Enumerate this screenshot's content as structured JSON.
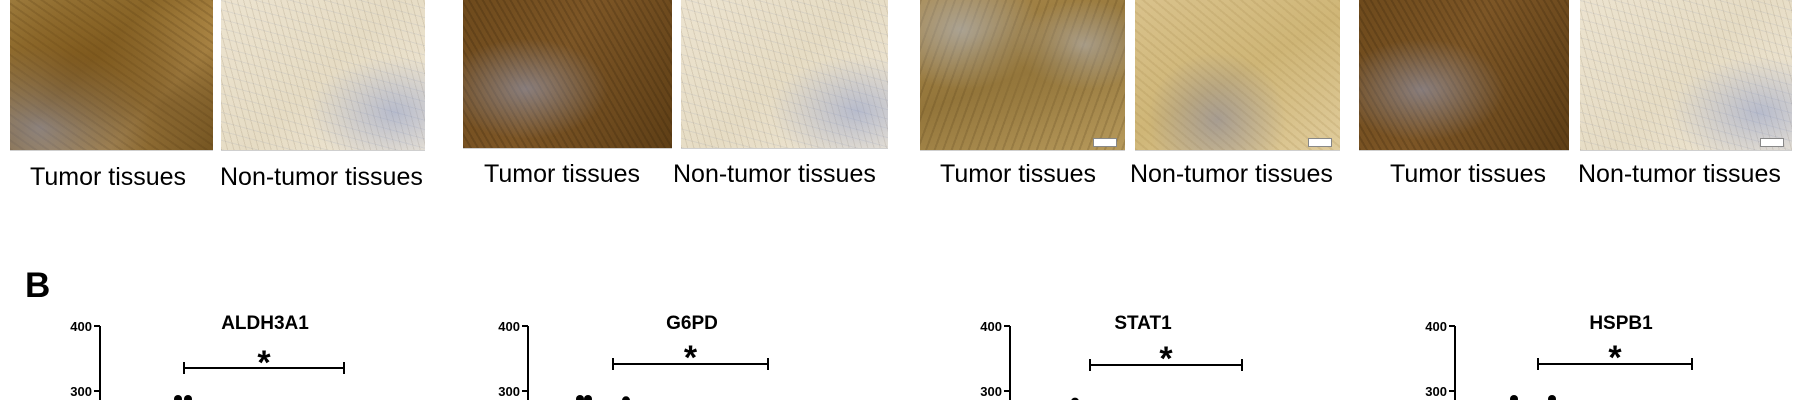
{
  "panel_a": {
    "groups": [
      {
        "tumor_label": "Tumor tissues",
        "normal_label": "Non-tumor tissues"
      },
      {
        "tumor_label": "Tumor tissues",
        "normal_label": "Non-tumor tissues"
      },
      {
        "tumor_label": "Tumor tissues",
        "normal_label": "Non-tumor tissues"
      },
      {
        "tumor_label": "Tumor tissues",
        "normal_label": "Non-tumor tissues"
      }
    ]
  },
  "panel_b": {
    "letter": "B",
    "significance_marker": "*"
  },
  "chart_data": [
    {
      "type": "scatter",
      "title": "ALDH3A1",
      "yticks": [
        300,
        400
      ],
      "ylim_visible": [
        290,
        400
      ],
      "significance": "*",
      "visible_points_y": [
        300,
        300
      ]
    },
    {
      "type": "scatter",
      "title": "G6PD",
      "yticks": [
        300,
        400
      ],
      "ylim_visible": [
        290,
        400
      ],
      "significance": "*",
      "visible_points_y": [
        300,
        300,
        298
      ]
    },
    {
      "type": "scatter",
      "title": "STAT1",
      "yticks": [
        300,
        400
      ],
      "ylim_visible": [
        290,
        400
      ],
      "significance": "*",
      "visible_points_y": [
        296
      ]
    },
    {
      "type": "scatter",
      "title": "HSPB1",
      "yticks": [
        300,
        400
      ],
      "ylim_visible": [
        290,
        400
      ],
      "significance": "*",
      "visible_points_y": [
        300,
        300
      ]
    }
  ]
}
